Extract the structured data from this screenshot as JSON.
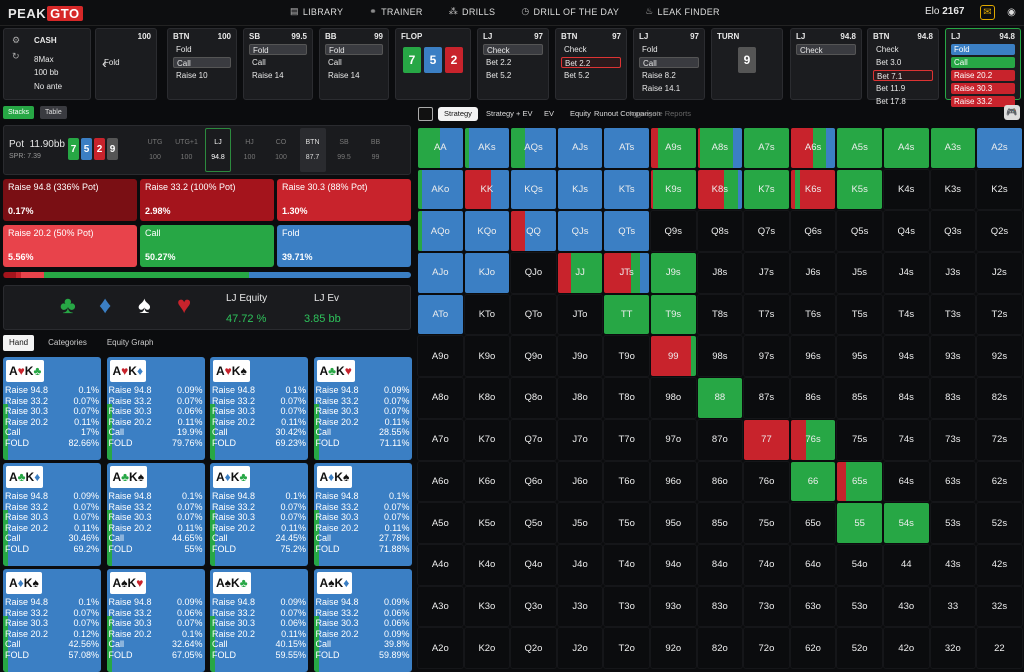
{
  "brand": {
    "part1": "PEAK",
    "part2": "GTO"
  },
  "nav": [
    {
      "label": "LIBRARY",
      "icon": "book-icon"
    },
    {
      "label": "TRAINER",
      "icon": "trainer-icon"
    },
    {
      "label": "DRILLS",
      "icon": "drills-icon"
    },
    {
      "label": "DRILL OF THE DAY",
      "icon": "calendar-icon"
    },
    {
      "label": "LEAK FINDER",
      "icon": "fire-icon"
    }
  ],
  "elo": {
    "label": "Elo",
    "value": "2167"
  },
  "game": {
    "type": "CASH",
    "table": "8Max",
    "stack": "100 bb",
    "ante": "No ante"
  },
  "colors": {
    "green": "#27a745",
    "blue": "#3b7fc4",
    "red": "#c8232c",
    "darkred": "#7a0f14",
    "accent": "#d62828"
  },
  "positions": [
    {
      "name": "",
      "stack": "100",
      "actions": [
        "",
        "Fold"
      ]
    },
    {
      "name": "BTN",
      "stack": "100",
      "actions": [
        "Fold",
        "Call",
        "Raise 10"
      ],
      "sel": 1
    },
    {
      "name": "SB",
      "stack": "99.5",
      "actions": [
        "Fold",
        "Call",
        "Raise 14"
      ],
      "sel": 0
    },
    {
      "name": "BB",
      "stack": "99",
      "actions": [
        "Fold",
        "Call",
        "Raise 14"
      ],
      "sel": 0
    },
    {
      "name": "FLOP",
      "stack": "",
      "cards": [
        {
          "r": "7",
          "c": "#27a745"
        },
        {
          "r": "5",
          "c": "#3b7fc4"
        },
        {
          "r": "2",
          "c": "#c8232c"
        }
      ]
    },
    {
      "name": "LJ",
      "stack": "97",
      "actions": [
        "Check",
        "Bet 2.2",
        "Bet 5.2"
      ],
      "sel": 0
    },
    {
      "name": "BTN",
      "stack": "97",
      "actions": [
        "Check",
        "Bet 2.2",
        "Bet 5.2"
      ],
      "selred": 1
    },
    {
      "name": "LJ",
      "stack": "97",
      "actions": [
        "Fold",
        "Call",
        "Raise 8.2",
        "Raise 14.1"
      ],
      "sel": 1
    },
    {
      "name": "TURN",
      "stack": "",
      "cards": [
        {
          "r": "9",
          "c": "#555"
        }
      ]
    },
    {
      "name": "LJ",
      "stack": "94.8",
      "actions": [
        "Check"
      ],
      "sel": 0
    },
    {
      "name": "BTN",
      "stack": "94.8",
      "actions": [
        "Check",
        "Bet 3.0",
        "Bet 7.1",
        "Bet 11.9",
        "Bet 17.8"
      ],
      "selred": 2
    },
    {
      "name": "LJ",
      "stack": "94.8",
      "actions": [
        "Fold",
        "Call",
        "Raise 20.2",
        "Raise 30.3",
        "Raise 33.2"
      ]
    }
  ],
  "stacks_tab": "Stacks",
  "table_tab": "Table",
  "pot": {
    "label": "Pot",
    "value": "11.90bb",
    "spr": "SPR: 7.39",
    "board": [
      {
        "r": "7",
        "c": "#27a745"
      },
      {
        "r": "5",
        "c": "#3b7fc4"
      },
      {
        "r": "2",
        "c": "#c8232c"
      },
      {
        "r": "9",
        "c": "#555"
      }
    ]
  },
  "seats": [
    {
      "n": "UTG",
      "s": "100"
    },
    {
      "n": "UTG+1",
      "s": "100"
    },
    {
      "n": "LJ",
      "s": "94.8"
    },
    {
      "n": "HJ",
      "s": "100"
    },
    {
      "n": "CO",
      "s": "100"
    },
    {
      "n": "BTN",
      "s": "87.7"
    },
    {
      "n": "SB",
      "s": "99.5"
    },
    {
      "n": "BB",
      "s": "99"
    }
  ],
  "actions": [
    {
      "label": "Raise 94.8 (336% Pot)",
      "value": "0.17%",
      "color": "#7a0f14"
    },
    {
      "label": "Raise 33.2 (100% Pot)",
      "value": "2.98%",
      "color": "#a4141c"
    },
    {
      "label": "Raise 30.3 (88% Pot)",
      "value": "1.30%",
      "color": "#c8232c"
    },
    {
      "label": "Raise 20.2 (50% Pot)",
      "value": "5.56%",
      "color": "#e8434b"
    },
    {
      "label": "Call",
      "value": "50.27%",
      "color": "#27a745"
    },
    {
      "label": "Fold",
      "value": "39.71%",
      "color": "#3b7fc4"
    }
  ],
  "freq_bar": [
    {
      "w": 0.17,
      "c": "#7a0f14"
    },
    {
      "w": 2.98,
      "c": "#a4141c"
    },
    {
      "w": 1.3,
      "c": "#c8232c"
    },
    {
      "w": 5.56,
      "c": "#e8434b"
    },
    {
      "w": 50.27,
      "c": "#27a745"
    },
    {
      "w": 39.71,
      "c": "#3b7fc4"
    }
  ],
  "equity": {
    "eq_label": "LJ Equity",
    "eq_value": "47.72 %",
    "ev_label": "LJ Ev",
    "ev_value": "3.85 bb",
    "suits": [
      {
        "s": "♣",
        "c": "#27a745"
      },
      {
        "s": "♦",
        "c": "#3b7fc4"
      },
      {
        "s": "♠",
        "c": "#ffffff"
      },
      {
        "s": "♥",
        "c": "#c8232c"
      }
    ]
  },
  "hand_tabs": [
    "Hand",
    "Categories",
    "Equity Graph"
  ],
  "hand_rows": [
    "Raise 94.8",
    "Raise 33.2",
    "Raise 30.3",
    "Raise 20.2",
    "Call",
    "FOLD"
  ],
  "hands": [
    {
      "c1": "A",
      "s1": "♥",
      "k1": "#c8232c",
      "c2": "K",
      "s2": "♣",
      "k2": "#27a745",
      "v": [
        "0.1%",
        "0.07%",
        "0.07%",
        "0.11%",
        "17%",
        "82.66%"
      ]
    },
    {
      "c1": "A",
      "s1": "♥",
      "k1": "#c8232c",
      "c2": "K",
      "s2": "♦",
      "k2": "#3b7fc4",
      "v": [
        "0.09%",
        "0.07%",
        "0.06%",
        "0.11%",
        "19.9%",
        "79.76%"
      ]
    },
    {
      "c1": "A",
      "s1": "♥",
      "k1": "#c8232c",
      "c2": "K",
      "s2": "♠",
      "k2": "#111",
      "v": [
        "0.1%",
        "0.07%",
        "0.07%",
        "0.11%",
        "30.42%",
        "69.23%"
      ]
    },
    {
      "c1": "A",
      "s1": "♣",
      "k1": "#27a745",
      "c2": "K",
      "s2": "♥",
      "k2": "#c8232c",
      "v": [
        "0.09%",
        "0.07%",
        "0.07%",
        "0.11%",
        "28.55%",
        "71.11%"
      ]
    },
    {
      "c1": "A",
      "s1": "♣",
      "k1": "#27a745",
      "c2": "K",
      "s2": "♦",
      "k2": "#3b7fc4",
      "v": [
        "0.09%",
        "0.07%",
        "0.07%",
        "0.11%",
        "30.46%",
        "69.2%"
      ]
    },
    {
      "c1": "A",
      "s1": "♣",
      "k1": "#27a745",
      "c2": "K",
      "s2": "♠",
      "k2": "#111",
      "v": [
        "0.1%",
        "0.07%",
        "0.07%",
        "0.11%",
        "44.65%",
        "55%"
      ]
    },
    {
      "c1": "A",
      "s1": "♦",
      "k1": "#3b7fc4",
      "c2": "K",
      "s2": "♣",
      "k2": "#27a745",
      "v": [
        "0.1%",
        "0.07%",
        "0.07%",
        "0.11%",
        "24.45%",
        "75.2%"
      ]
    },
    {
      "c1": "A",
      "s1": "♦",
      "k1": "#3b7fc4",
      "c2": "K",
      "s2": "♠",
      "k2": "#111",
      "v": [
        "0.1%",
        "0.07%",
        "0.07%",
        "0.11%",
        "27.78%",
        "71.88%"
      ]
    },
    {
      "c1": "A",
      "s1": "♦",
      "k1": "#3b7fc4",
      "c2": "K",
      "s2": "♠",
      "k2": "#111",
      "v": [
        "0.1%",
        "0.07%",
        "0.07%",
        "0.12%",
        "42.56%",
        "57.08%"
      ]
    },
    {
      "c1": "A",
      "s1": "♠",
      "k1": "#111",
      "c2": "K",
      "s2": "♥",
      "k2": "#c8232c",
      "v": [
        "0.09%",
        "0.06%",
        "0.07%",
        "0.1%",
        "32.64%",
        "67.05%"
      ]
    },
    {
      "c1": "A",
      "s1": "♠",
      "k1": "#111",
      "c2": "K",
      "s2": "♣",
      "k2": "#27a745",
      "v": [
        "0.09%",
        "0.07%",
        "0.06%",
        "0.11%",
        "40.15%",
        "59.55%"
      ]
    },
    {
      "c1": "A",
      "s1": "♠",
      "k1": "#111",
      "c2": "K",
      "s2": "♦",
      "k2": "#3b7fc4",
      "v": [
        "0.09%",
        "0.06%",
        "0.06%",
        "0.09%",
        "39.8%",
        "59.89%"
      ]
    }
  ],
  "matrix_tabs": [
    "Strategy",
    "Strategy + EV",
    "EV",
    "Equity",
    "Runout Comparison",
    "Aggregate Reports"
  ],
  "ranks": [
    "A",
    "K",
    "Q",
    "J",
    "T",
    "9",
    "8",
    "7",
    "6",
    "5",
    "4",
    "3",
    "2"
  ],
  "cell_mix": {
    "AA": [
      [
        "g",
        0.5
      ],
      [
        "b",
        0.5
      ]
    ],
    "AKs": [
      [
        "g",
        0.1
      ],
      [
        "b",
        0.9
      ]
    ],
    "AQs": [
      [
        "g",
        0.3
      ],
      [
        "b",
        0.7
      ]
    ],
    "AJs": [
      [
        "b",
        1
      ]
    ],
    "ATs": [
      [
        "b",
        1
      ]
    ],
    "A9s": [
      [
        "r",
        0.15
      ],
      [
        "g",
        0.85
      ]
    ],
    "A8s": [
      [
        "r",
        0.05
      ],
      [
        "g",
        0.75
      ],
      [
        "b",
        0.2
      ]
    ],
    "A7s": [
      [
        "g",
        1
      ]
    ],
    "A6s": [
      [
        "r",
        0.5
      ],
      [
        "g",
        0.3
      ],
      [
        "b",
        0.2
      ]
    ],
    "A5s": [
      [
        "g",
        1
      ]
    ],
    "A4s": [
      [
        "g",
        1
      ]
    ],
    "A3s": [
      [
        "g",
        1
      ]
    ],
    "A2s": [
      [
        "b",
        1
      ]
    ],
    "AKo": [
      [
        "g",
        0.1
      ],
      [
        "b",
        0.9
      ]
    ],
    "KK": [
      [
        "r",
        0.6
      ],
      [
        "b",
        0.4
      ]
    ],
    "KQs": [
      [
        "b",
        1
      ]
    ],
    "KJs": [
      [
        "b",
        1
      ]
    ],
    "KTs": [
      [
        "b",
        1
      ]
    ],
    "K9s": [
      [
        "r",
        0.05
      ],
      [
        "g",
        0.95
      ]
    ],
    "K8s": [
      [
        "r",
        0.6
      ],
      [
        "g",
        0.3
      ],
      [
        "b",
        0.1
      ]
    ],
    "K7s": [
      [
        "g",
        1
      ]
    ],
    "K6s": [
      [
        "r",
        0.1
      ],
      [
        "g",
        0.1
      ],
      [
        "r",
        0.8
      ]
    ],
    "K5s": [
      [
        "g",
        1
      ]
    ],
    "AQo": [
      [
        "g",
        0.1
      ],
      [
        "b",
        0.9
      ]
    ],
    "KQo": [
      [
        "b",
        1
      ]
    ],
    "QQ": [
      [
        "r",
        0.3
      ],
      [
        "b",
        0.7
      ]
    ],
    "QJs": [
      [
        "b",
        1
      ]
    ],
    "QTs": [
      [
        "b",
        1
      ]
    ],
    "AJo": [
      [
        "b",
        1
      ]
    ],
    "KJo": [
      [
        "b",
        1
      ]
    ],
    "JJ": [
      [
        "r",
        0.3
      ],
      [
        "g",
        0.7
      ]
    ],
    "JTs": [
      [
        "r",
        0.6
      ],
      [
        "g",
        0.2
      ],
      [
        "b",
        0.2
      ]
    ],
    "J9s": [
      [
        "g",
        1
      ]
    ],
    "ATo": [
      [
        "b",
        1
      ]
    ],
    "TT": [
      [
        "g",
        1
      ]
    ],
    "T9s": [
      [
        "g",
        1
      ]
    ],
    "99": [
      [
        "r",
        0.9
      ],
      [
        "g",
        0.1
      ]
    ],
    "88": [
      [
        "g",
        1
      ]
    ],
    "77": [
      [
        "r",
        1
      ]
    ],
    "76s": [
      [
        "r",
        0.35
      ],
      [
        "g",
        0.65
      ]
    ],
    "66": [
      [
        "g",
        1
      ]
    ],
    "65s": [
      [
        "r",
        0.2
      ],
      [
        "g",
        0.8
      ]
    ],
    "55": [
      [
        "g",
        1
      ]
    ],
    "54s": [
      [
        "g",
        1
      ]
    ]
  }
}
